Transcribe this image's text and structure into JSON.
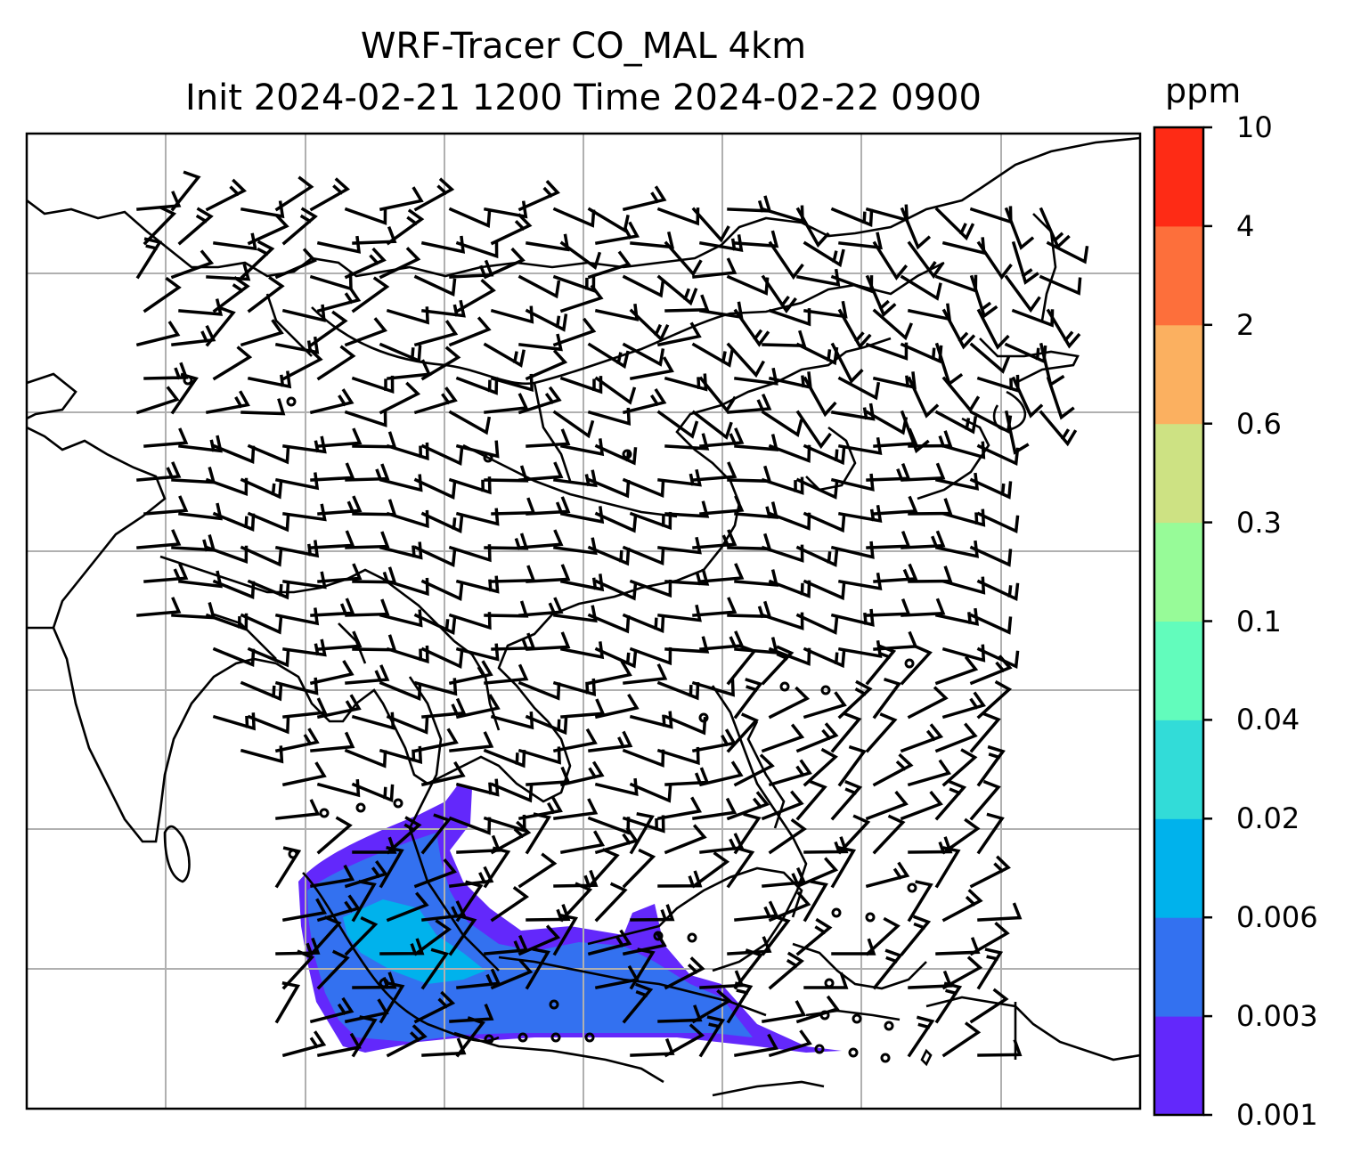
{
  "title_line1": "WRF-Tracer CO_MAL 4km",
  "title_line2": "Init 2024-02-21 1200 Time 2024-02-22 0900",
  "colorbar": {
    "units": "ppm",
    "levels": [
      "0.001",
      "0.003",
      "0.006",
      "0.02",
      "0.04",
      "0.1",
      "0.3",
      "0.6",
      "2",
      "4",
      "10"
    ],
    "colors": [
      "#6328fb",
      "#3371f0",
      "#00b2ec",
      "#32dcd8",
      "#62fcbc",
      "#97fb98",
      "#cde283",
      "#fbb060",
      "#fd6f3b",
      "#fe2b15"
    ]
  },
  "map": {
    "wind_barbs": true,
    "gridlines": true,
    "coastlines": true
  }
}
